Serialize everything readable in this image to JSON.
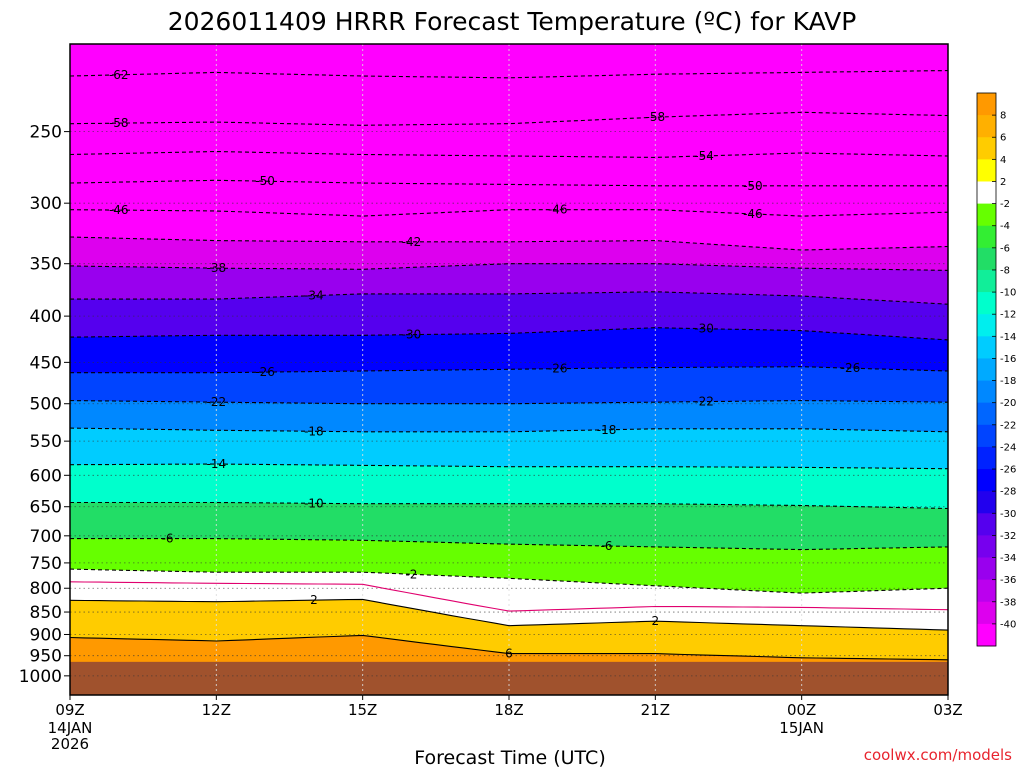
{
  "chart_data": {
    "type": "heatmap",
    "title": "2026011409 HRRR Forecast Temperature (ºC) for KAVP",
    "xlabel": "Forecast Time (UTC)",
    "ylabel": "",
    "credit": "coolwx.com/models",
    "credit_color": "#e8242e",
    "x_ticks": [
      "09Z",
      "12Z",
      "15Z",
      "18Z",
      "21Z",
      "00Z",
      "03Z"
    ],
    "x_hours": [
      9,
      12,
      15,
      18,
      21,
      24,
      27
    ],
    "x_date_labels": [
      {
        "hour": 9,
        "lines": [
          "14JAN",
          "2026"
        ]
      },
      {
        "hour": 24,
        "lines": [
          "15JAN"
        ]
      }
    ],
    "xlim": [
      9,
      27
    ],
    "y_ticks": [
      250,
      300,
      350,
      400,
      450,
      500,
      550,
      600,
      650,
      700,
      750,
      800,
      850,
      900,
      950,
      1000
    ],
    "ylim_hpa": [
      200,
      1050
    ],
    "ground_color": "#a0522d",
    "colorbar": {
      "ticks": [
        8,
        6,
        4,
        2,
        -2,
        -4,
        -6,
        -8,
        -10,
        -12,
        -14,
        -16,
        -18,
        -20,
        -22,
        -24,
        -26,
        -28,
        -30,
        -32,
        -34,
        -36,
        -38,
        -40
      ],
      "bands": [
        {
          "lo": 8,
          "hi": 10,
          "color": "#ff9900"
        },
        {
          "lo": 6,
          "hi": 8,
          "color": "#ffb000"
        },
        {
          "lo": 4,
          "hi": 6,
          "color": "#ffcc00"
        },
        {
          "lo": 2,
          "hi": 4,
          "color": "#ffff00"
        },
        {
          "lo": -2,
          "hi": 2,
          "color": "#ffffff"
        },
        {
          "lo": -4,
          "hi": -2,
          "color": "#66ff00"
        },
        {
          "lo": -6,
          "hi": -4,
          "color": "#33ee33"
        },
        {
          "lo": -8,
          "hi": -6,
          "color": "#22dd66"
        },
        {
          "lo": -10,
          "hi": -8,
          "color": "#11ee99"
        },
        {
          "lo": -12,
          "hi": -10,
          "color": "#00ffcc"
        },
        {
          "lo": -14,
          "hi": -12,
          "color": "#00eeee"
        },
        {
          "lo": -16,
          "hi": -14,
          "color": "#00ccff"
        },
        {
          "lo": -18,
          "hi": -16,
          "color": "#00aaff"
        },
        {
          "lo": -20,
          "hi": -18,
          "color": "#0088ff"
        },
        {
          "lo": -22,
          "hi": -20,
          "color": "#0066ff"
        },
        {
          "lo": -24,
          "hi": -22,
          "color": "#0044ff"
        },
        {
          "lo": -26,
          "hi": -24,
          "color": "#0022ff"
        },
        {
          "lo": -28,
          "hi": -26,
          "color": "#0000ff"
        },
        {
          "lo": -30,
          "hi": -28,
          "color": "#2200ee"
        },
        {
          "lo": -32,
          "hi": -30,
          "color": "#5500ee"
        },
        {
          "lo": -34,
          "hi": -32,
          "color": "#7700ee"
        },
        {
          "lo": -36,
          "hi": -34,
          "color": "#9900ee"
        },
        {
          "lo": -38,
          "hi": -36,
          "color": "#bb00ee"
        },
        {
          "lo": -40,
          "hi": -38,
          "color": "#dd00ee"
        },
        {
          "lo": -70,
          "hi": -40,
          "color": "#ff00ff"
        }
      ]
    },
    "profile_hpa": [
      200,
      250,
      300,
      350,
      400,
      450,
      500,
      550,
      600,
      650,
      700,
      750,
      800,
      850,
      900,
      950,
      1000
    ],
    "profile_temps_c": [
      -63,
      -57,
      -46,
      -37,
      -32,
      -26,
      -22,
      -18,
      -13,
      -9,
      -5,
      -1,
      1,
      3,
      5,
      8,
      9
    ],
    "contours": [
      {
        "temp": -62,
        "dashed": true,
        "hpa": [
          217,
          215,
          217,
          218,
          216,
          215,
          214
        ],
        "labels": [
          {
            "hour": 10,
            "text": "-62"
          }
        ]
      },
      {
        "temp": -58,
        "dashed": true,
        "hpa": [
          245,
          244,
          246,
          245,
          241,
          238,
          240
        ],
        "labels": [
          {
            "hour": 10,
            "text": "-58"
          },
          {
            "hour": 21,
            "text": "-58"
          }
        ]
      },
      {
        "temp": -54,
        "dashed": true,
        "hpa": [
          265,
          263,
          265,
          266,
          267,
          264,
          266
        ],
        "labels": [
          {
            "hour": 22,
            "text": "-54"
          }
        ]
      },
      {
        "temp": -50,
        "dashed": true,
        "hpa": [
          285,
          283,
          285,
          286,
          287,
          287,
          287
        ],
        "labels": [
          {
            "hour": 13,
            "text": "-50"
          },
          {
            "hour": 23,
            "text": "-50"
          }
        ]
      },
      {
        "temp": -46,
        "dashed": true,
        "hpa": [
          305,
          306,
          310,
          305,
          305,
          310,
          307
        ],
        "labels": [
          {
            "hour": 10,
            "text": "-46"
          },
          {
            "hour": 19,
            "text": "-46"
          },
          {
            "hour": 23,
            "text": "-46"
          }
        ]
      },
      {
        "temp": -42,
        "dashed": true,
        "hpa": [
          327,
          330,
          331,
          331,
          330,
          338,
          335
        ],
        "labels": [
          {
            "hour": 16,
            "text": "-42"
          }
        ]
      },
      {
        "temp": -38,
        "dashed": true,
        "hpa": [
          352,
          354,
          355,
          350,
          350,
          354,
          356
        ],
        "labels": [
          {
            "hour": 12,
            "text": "-38"
          }
        ]
      },
      {
        "temp": -34,
        "dashed": true,
        "hpa": [
          383,
          383,
          378,
          378,
          376,
          380,
          388
        ],
        "labels": [
          {
            "hour": 14,
            "text": "-34"
          }
        ]
      },
      {
        "temp": -30,
        "dashed": true,
        "hpa": [
          422,
          420,
          420,
          418,
          412,
          415,
          425
        ],
        "labels": [
          {
            "hour": 16,
            "text": "-30"
          },
          {
            "hour": 22,
            "text": "-30"
          }
        ]
      },
      {
        "temp": -26,
        "dashed": true,
        "hpa": [
          462,
          462,
          460,
          458,
          456,
          455,
          460
        ],
        "labels": [
          {
            "hour": 13,
            "text": "-26"
          },
          {
            "hour": 19,
            "text": "-26"
          },
          {
            "hour": 25,
            "text": "-26"
          }
        ]
      },
      {
        "temp": -22,
        "dashed": true,
        "hpa": [
          496,
          498,
          500,
          500,
          498,
          496,
          498
        ],
        "labels": [
          {
            "hour": 12,
            "text": "-22"
          },
          {
            "hour": 22,
            "text": "-22"
          }
        ]
      },
      {
        "temp": -18,
        "dashed": true,
        "hpa": [
          532,
          535,
          537,
          537,
          533,
          533,
          537
        ],
        "labels": [
          {
            "hour": 14,
            "text": "-18"
          },
          {
            "hour": 20,
            "text": "-18"
          }
        ]
      },
      {
        "temp": -14,
        "dashed": true,
        "hpa": [
          584,
          583,
          585,
          587,
          587,
          588,
          590
        ],
        "labels": [
          {
            "hour": 12,
            "text": "-14"
          }
        ]
      },
      {
        "temp": -10,
        "dashed": true,
        "hpa": [
          643,
          643,
          645,
          645,
          645,
          648,
          653
        ],
        "labels": [
          {
            "hour": 14,
            "text": "-10"
          }
        ]
      },
      {
        "temp": -6,
        "dashed": true,
        "hpa": [
          705,
          705,
          708,
          715,
          720,
          725,
          720
        ],
        "labels": [
          {
            "hour": 11,
            "text": "-6"
          },
          {
            "hour": 20,
            "text": "-6"
          }
        ]
      },
      {
        "temp": -2,
        "dashed": true,
        "hpa": [
          762,
          768,
          768,
          780,
          795,
          810,
          800
        ],
        "labels": [
          {
            "hour": 16,
            "text": "-2"
          }
        ]
      },
      {
        "temp": 0,
        "dashed": false,
        "color": "#e0006e",
        "hpa": [
          787,
          790,
          792,
          848,
          838,
          840,
          845
        ],
        "labels": []
      },
      {
        "temp": 2,
        "dashed": false,
        "hpa": [
          825,
          828,
          823,
          880,
          870,
          880,
          890
        ],
        "labels": [
          {
            "hour": 14,
            "text": "2"
          },
          {
            "hour": 21,
            "text": "2"
          }
        ]
      },
      {
        "temp": 6,
        "dashed": false,
        "hpa": [
          907,
          915,
          902,
          945,
          945,
          955,
          960
        ],
        "labels": [
          {
            "hour": 18,
            "text": "6"
          }
        ]
      }
    ]
  }
}
